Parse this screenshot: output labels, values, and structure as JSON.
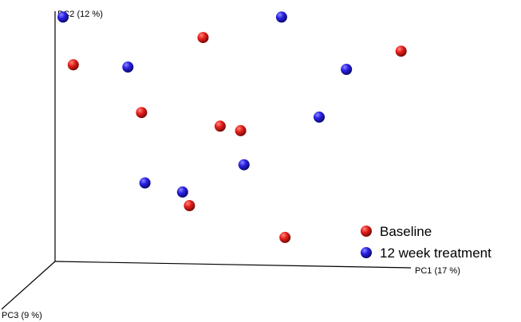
{
  "chart_data": {
    "type": "scatter",
    "title": "",
    "axes": {
      "pc1": "PC1 (17 %)",
      "pc2": "PC2 (12 %)",
      "pc3": "PC3 (9 %)"
    },
    "legend": {
      "placement": "bottom-right"
    },
    "series": [
      {
        "name": "Baseline",
        "color": "#e8201c",
        "points": [
          {
            "pc1": 0.03,
            "pc2": 0.82
          },
          {
            "pc1": 0.41,
            "pc2": 0.94
          },
          {
            "pc1": 0.99,
            "pc2": 0.88
          },
          {
            "pc1": 0.23,
            "pc2": 0.61
          },
          {
            "pc1": 0.46,
            "pc2": 0.55
          },
          {
            "pc1": 0.52,
            "pc2": 0.53
          },
          {
            "pc1": 0.37,
            "pc2": 0.2
          },
          {
            "pc1": 0.65,
            "pc2": 0.06
          }
        ]
      },
      {
        "name": "12 week treatment",
        "color": "#2a22e6",
        "points": [
          {
            "pc1": 0.0,
            "pc2": 1.03
          },
          {
            "pc1": 0.64,
            "pc2": 1.03
          },
          {
            "pc1": 0.83,
            "pc2": 0.8
          },
          {
            "pc1": 0.19,
            "pc2": 0.81
          },
          {
            "pc1": 0.75,
            "pc2": 0.59
          },
          {
            "pc1": 0.53,
            "pc2": 0.38
          },
          {
            "pc1": 0.24,
            "pc2": 0.3
          },
          {
            "pc1": 0.35,
            "pc2": 0.26
          }
        ]
      }
    ]
  }
}
